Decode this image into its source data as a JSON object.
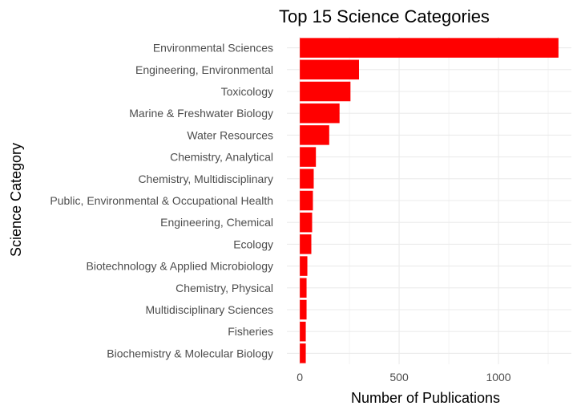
{
  "chart_data": {
    "type": "bar",
    "orientation": "horizontal",
    "title": "Top 15 Science Categories",
    "xlabel": "Number of Publications",
    "ylabel": "Science Category",
    "categories": [
      "Environmental Sciences",
      "Engineering, Environmental",
      "Toxicology",
      "Marine & Freshwater Biology",
      "Water Resources",
      "Chemistry, Analytical",
      "Chemistry, Multidisciplinary",
      "Public, Environmental & Occupational Health",
      "Engineering, Chemical",
      "Ecology",
      "Biotechnology & Applied Microbiology",
      "Chemistry, Physical",
      "Multidisciplinary Sciences",
      "Fisheries",
      "Biochemistry & Molecular Biology"
    ],
    "values": [
      1302,
      298,
      255,
      200,
      148,
      81,
      70,
      66,
      62,
      58,
      38,
      34,
      34,
      30,
      30
    ],
    "xlim": [
      -65,
      1367
    ],
    "xticks": [
      0,
      500,
      1000
    ],
    "xtick_labels": [
      "0",
      "500",
      "1000"
    ],
    "minor_gridlines": [
      250,
      750,
      1250
    ],
    "grid": true,
    "bar_color": "#FF0000",
    "grid_color": "#EBEBEB"
  }
}
